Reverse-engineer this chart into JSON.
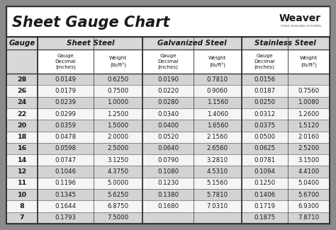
{
  "title": "Sheet Gauge Chart",
  "bg_outer": "#8a8a8a",
  "bg_white": "#ffffff",
  "bg_light_gray": "#d8d8d8",
  "row_gray": "#d3d3d3",
  "row_white": "#f5f5f5",
  "border_dark": "#333333",
  "border_mid": "#666666",
  "text_dark": "#1a1a1a",
  "gauges": [
    28,
    26,
    24,
    22,
    20,
    18,
    16,
    14,
    12,
    11,
    10,
    8,
    7
  ],
  "sheet_steel_dec": [
    "0.0149",
    "0.0179",
    "0.0239",
    "0.0299",
    "0.0359",
    "0.0478",
    "0.0598",
    "0.0747",
    "0.1046",
    "0.1196",
    "0.1345",
    "0.1644",
    "0.1793"
  ],
  "sheet_steel_wt": [
    "0.6250",
    "0.7500",
    "1.0000",
    "1.2500",
    "1.5000",
    "2.0000",
    "2.5000",
    "3.1250",
    "4.3750",
    "5.0000",
    "5.6250",
    "6.8750",
    "7.5000"
  ],
  "galv_dec": [
    "0.0190",
    "0.0220",
    "0.0280",
    "0.0340",
    "0.0400",
    "0.0520",
    "0.0640",
    "0.0790",
    "0.1080",
    "0.1230",
    "0.1380",
    "0.1680",
    ""
  ],
  "galv_wt": [
    "0.7810",
    "0.9060",
    "1.1560",
    "1.4060",
    "1.6560",
    "2.1560",
    "2.6560",
    "3.2810",
    "4.5310",
    "5.1560",
    "5.7810",
    "7.0310",
    ""
  ],
  "stain_dec": [
    "0.0156",
    "0.0187",
    "0.0250",
    "0.0312",
    "0.0375",
    "0.0500",
    "0.0625",
    "0.0781",
    "0.1094",
    "0.1250",
    "0.1406",
    "0.1719",
    "0.1875"
  ],
  "stain_wt": [
    "",
    "0.7560",
    "1.0080",
    "1.2600",
    "1.5120",
    "2.0160",
    "2.5200",
    "3.1500",
    "4.4100",
    "5.0400",
    "5.6700",
    "6.9300",
    "7.8710"
  ]
}
